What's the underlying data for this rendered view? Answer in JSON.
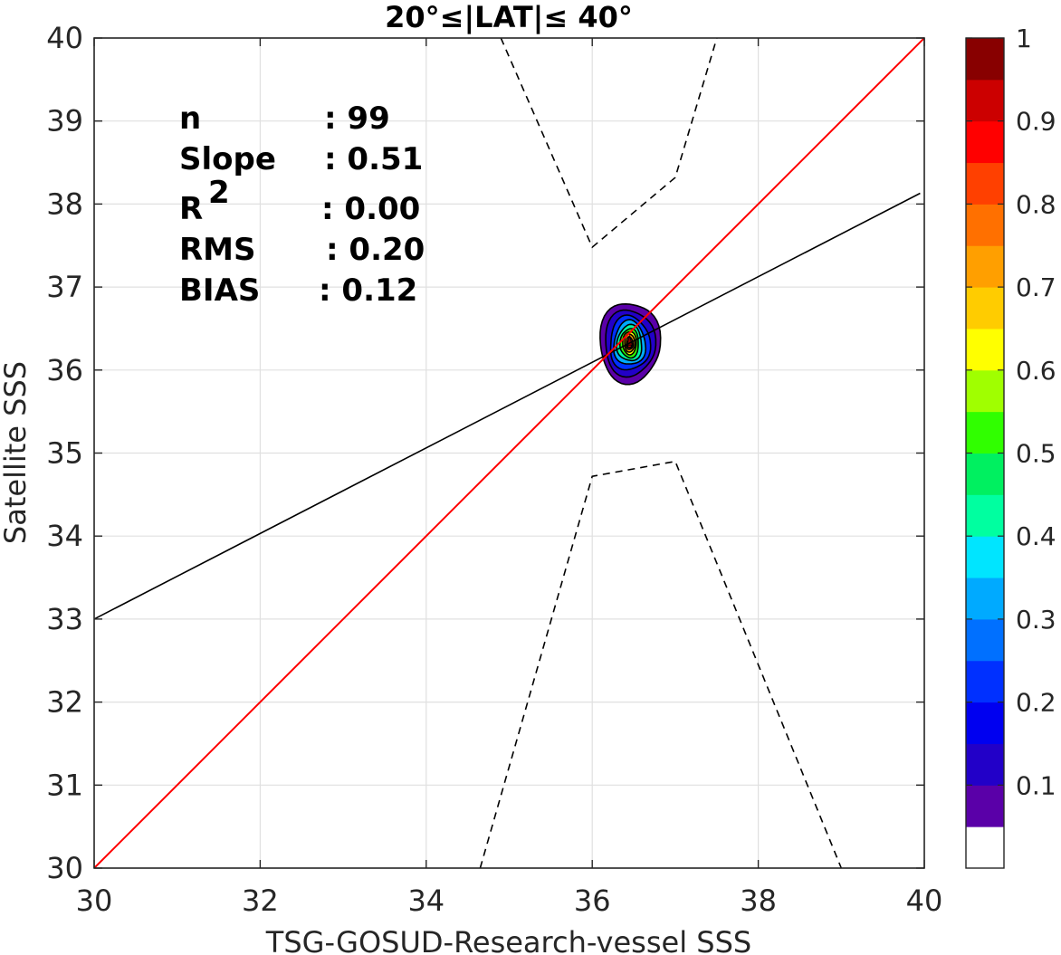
{
  "chart_data": {
    "type": "contour-density-scatter",
    "title": "20°≤|LAT|≤ 40°",
    "xlabel": "TSG-GOSUD-Research-vessel SSS",
    "ylabel": "Satellite SSS",
    "xlim": [
      30,
      40
    ],
    "ylim": [
      30,
      40
    ],
    "x_ticks": [
      "30",
      "32",
      "34",
      "36",
      "38",
      "40"
    ],
    "y_ticks": [
      "30",
      "31",
      "32",
      "33",
      "34",
      "35",
      "36",
      "37",
      "38",
      "39",
      "40"
    ],
    "grid": true,
    "stats": [
      {
        "label": "n",
        "value": ": 99"
      },
      {
        "label": "Slope",
        "value": ": 0.51"
      },
      {
        "label": "R",
        "sup": "2",
        "value": ": 0.00"
      },
      {
        "label": "RMS",
        "value": ": 0.20"
      },
      {
        "label": "BIAS",
        "value": ": 0.12"
      }
    ],
    "one_to_one_line": {
      "color": "#ff0000",
      "points": [
        [
          30,
          30
        ],
        [
          40,
          40
        ]
      ]
    },
    "regression_line": {
      "color": "#000000",
      "points": [
        [
          30,
          33.0
        ],
        [
          39.95,
          38.13
        ]
      ]
    },
    "envelope_upper": [
      [
        34.9,
        40.0
      ],
      [
        36.0,
        37.48
      ],
      [
        37.0,
        38.32
      ],
      [
        37.5,
        40.0
      ]
    ],
    "envelope_lower": [
      [
        34.65,
        30.0
      ],
      [
        36.0,
        34.72
      ],
      [
        37.0,
        34.9
      ],
      [
        39.0,
        30.0
      ]
    ],
    "density_peak": {
      "x": 36.45,
      "y": 36.3
    },
    "density_levels": [
      {
        "level": 0.05,
        "rx": 0.36,
        "ry_up": 0.52,
        "ry_down": 0.45
      },
      {
        "level": 0.1,
        "rx": 0.3,
        "ry_up": 0.43,
        "ry_down": 0.37
      },
      {
        "level": 0.2,
        "rx": 0.24,
        "ry_up": 0.35,
        "ry_down": 0.3
      },
      {
        "level": 0.3,
        "rx": 0.19,
        "ry_up": 0.29,
        "ry_down": 0.24
      },
      {
        "level": 0.4,
        "rx": 0.15,
        "ry_up": 0.24,
        "ry_down": 0.19
      },
      {
        "level": 0.5,
        "rx": 0.11,
        "ry_up": 0.2,
        "ry_down": 0.15
      },
      {
        "level": 0.6,
        "rx": 0.08,
        "ry_up": 0.17,
        "ry_down": 0.11
      },
      {
        "level": 0.7,
        "rx": 0.06,
        "ry_up": 0.14,
        "ry_down": 0.08
      },
      {
        "level": 0.8,
        "rx": 0.04,
        "ry_up": 0.1,
        "ry_down": 0.05
      },
      {
        "level": 0.9,
        "rx": 0.025,
        "ry_up": 0.06,
        "ry_down": 0.03
      }
    ],
    "colorbar": {
      "ticks": [
        "0.1",
        "0.2",
        "0.3",
        "0.4",
        "0.5",
        "0.6",
        "0.7",
        "0.8",
        "0.9",
        "1"
      ],
      "tick_values": [
        0.1,
        0.2,
        0.3,
        0.4,
        0.5,
        0.6,
        0.7,
        0.8,
        0.9,
        1.0
      ],
      "colors": [
        "#ffffff",
        "#5a00a8",
        "#2200c8",
        "#0000f0",
        "#0030ff",
        "#0070ff",
        "#00aaff",
        "#00e5ff",
        "#00ffa0",
        "#00f060",
        "#30ff00",
        "#a0ff00",
        "#ffff00",
        "#ffcc00",
        "#ff9f00",
        "#ff7000",
        "#ff4000",
        "#ff0000",
        "#cc0000",
        "#880000"
      ]
    }
  }
}
